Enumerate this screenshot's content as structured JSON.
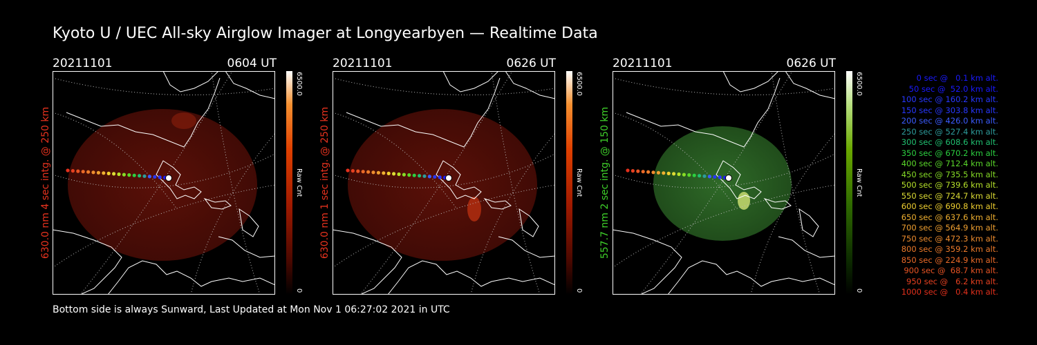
{
  "title": "Kyoto U / UEC All-sky Airglow Imager at Longyearbyen — Realtime Data",
  "footer": "Bottom side is always Sunward, Last Updated at Mon Nov  1 06:27:02 2021 in UTC",
  "panels": [
    {
      "date": "20211101",
      "time": "0604 UT",
      "ylabel": "630.0 nm 4 sec intg. @ 250 km",
      "colorbar_max": "6500.0",
      "colorbar_min": "0",
      "colorbar_unit": "Raw Cnt",
      "color": "#e8321e",
      "palette": "red"
    },
    {
      "date": "20211101",
      "time": "0626 UT",
      "ylabel": "630.0 nm 1 sec intg. @ 250 km",
      "colorbar_max": "6500.0",
      "colorbar_min": "0",
      "colorbar_unit": "Raw Cnt",
      "color": "#e8321e",
      "palette": "red"
    },
    {
      "date": "20211101",
      "time": "0626 UT",
      "ylabel": "557.7 nm 2 sec intg. @ 150 km",
      "colorbar_max": "6500.0",
      "colorbar_min": "0",
      "colorbar_unit": "Raw Cnt",
      "color": "#3fd12a",
      "palette": "green"
    }
  ],
  "legend": [
    {
      "text": "0 sec @   0.1 km alt.",
      "color": "#1a1aff"
    },
    {
      "text": "50 sec @  52.0 km alt.",
      "color": "#1a1aff"
    },
    {
      "text": "100 sec @ 160.2 km alt.",
      "color": "#2838ff"
    },
    {
      "text": "150 sec @ 303.8 km alt.",
      "color": "#2838ff"
    },
    {
      "text": "200 sec @ 426.0 km alt.",
      "color": "#3c5cff"
    },
    {
      "text": "250 sec @ 527.4 km alt.",
      "color": "#2e9c9c"
    },
    {
      "text": "300 sec @ 608.6 km alt.",
      "color": "#20c070"
    },
    {
      "text": "350 sec @ 670.2 km alt.",
      "color": "#2cd040"
    },
    {
      "text": "400 sec @ 712.4 km alt.",
      "color": "#5ad82a"
    },
    {
      "text": "450 sec @ 735.5 km alt.",
      "color": "#86dc26"
    },
    {
      "text": "500 sec @ 739.6 km alt.",
      "color": "#b6e22a"
    },
    {
      "text": "550 sec @ 724.7 km alt.",
      "color": "#dcdc34"
    },
    {
      "text": "600 sec @ 690.8 km alt.",
      "color": "#f0d030"
    },
    {
      "text": "650 sec @ 637.6 km alt.",
      "color": "#f0b030"
    },
    {
      "text": "700 sec @ 564.9 km alt.",
      "color": "#f0a030"
    },
    {
      "text": "750 sec @ 472.3 km alt.",
      "color": "#ee8c2e"
    },
    {
      "text": "800 sec @ 359.2 km alt.",
      "color": "#ec7a2a"
    },
    {
      "text": "850 sec @ 224.9 km alt.",
      "color": "#ea6a28"
    },
    {
      "text": "900 sec @  68.7 km alt.",
      "color": "#e85424"
    },
    {
      "text": "950 sec @   6.2 km alt.",
      "color": "#e64020"
    },
    {
      "text": "1000 sec @   0.4 km alt.",
      "color": "#e4301c"
    }
  ]
}
